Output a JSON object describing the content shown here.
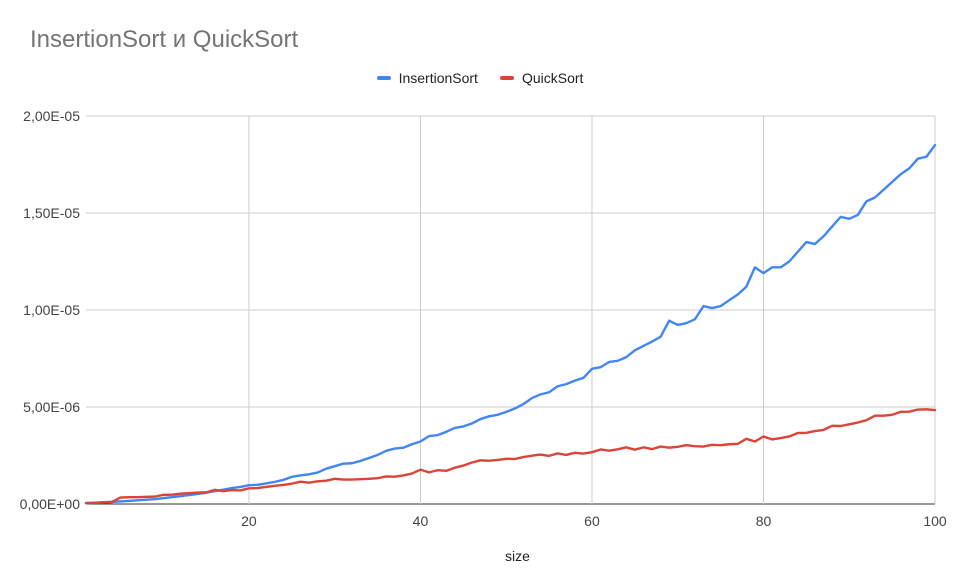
{
  "chart_data": {
    "type": "line",
    "title": "InsertionSort и QuickSort",
    "xlabel": "size",
    "ylabel": "",
    "xlim": [
      1,
      100
    ],
    "ylim": [
      0,
      2e-05
    ],
    "x_ticks": [
      20,
      40,
      60,
      80,
      100
    ],
    "x_tick_labels": [
      "20",
      "40",
      "60",
      "80",
      "100"
    ],
    "y_ticks": [
      0,
      5e-06,
      1e-05,
      1.5e-05,
      2e-05
    ],
    "y_tick_labels": [
      "0,00E+00",
      "5,00E-06",
      "1,00E-05",
      "1,50E-05",
      "2,00E-05"
    ],
    "grid": true,
    "legend_position": "top-center",
    "x": [
      1,
      2,
      3,
      4,
      5,
      6,
      7,
      8,
      9,
      10,
      11,
      12,
      13,
      14,
      15,
      16,
      17,
      18,
      19,
      20,
      21,
      22,
      23,
      24,
      25,
      26,
      27,
      28,
      29,
      30,
      31,
      32,
      33,
      34,
      35,
      36,
      37,
      38,
      39,
      40,
      41,
      42,
      43,
      44,
      45,
      46,
      47,
      48,
      49,
      50,
      51,
      52,
      53,
      54,
      55,
      56,
      57,
      58,
      59,
      60,
      61,
      62,
      63,
      64,
      65,
      66,
      67,
      68,
      69,
      70,
      71,
      72,
      73,
      74,
      75,
      76,
      77,
      78,
      79,
      80,
      81,
      82,
      83,
      84,
      85,
      86,
      87,
      88,
      89,
      90,
      91,
      92,
      93,
      94,
      95,
      96,
      97,
      98,
      99,
      100
    ],
    "series": [
      {
        "name": "InsertionSort",
        "color": "#4285f4",
        "values": [
          5e-08,
          7e-08,
          9e-08,
          1.1e-07,
          1.3e-07,
          1.6e-07,
          1.9e-07,
          2.2e-07,
          2.5e-07,
          3e-07,
          3.5e-07,
          4e-07,
          4.6e-07,
          5.2e-07,
          5.8e-07,
          6.6e-07,
          7.4e-07,
          8.2e-07,
          8.8e-07,
          9.7e-07,
          9.9e-07,
          1.06e-06,
          1.14e-06,
          1.24e-06,
          1.4e-06,
          1.47e-06,
          1.53e-06,
          1.62e-06,
          1.82e-06,
          1.95e-06,
          2.08e-06,
          2.1e-06,
          2.22e-06,
          2.37e-06,
          2.53e-06,
          2.74e-06,
          2.86e-06,
          2.9e-06,
          3.08e-06,
          3.22e-06,
          3.5e-06,
          3.55e-06,
          3.72e-06,
          3.92e-06,
          4e-06,
          4.15e-06,
          4.38e-06,
          4.52e-06,
          4.6e-06,
          4.75e-06,
          4.92e-06,
          5.15e-06,
          5.46e-06,
          5.65e-06,
          5.76e-06,
          6.07e-06,
          6.18e-06,
          6.36e-06,
          6.5e-06,
          6.97e-06,
          7.05e-06,
          7.32e-06,
          7.38e-06,
          7.57e-06,
          7.92e-06,
          8.15e-06,
          8.37e-06,
          8.62e-06,
          9.45e-06,
          9.23e-06,
          9.32e-06,
          9.52e-06,
          1.02e-05,
          1.01e-05,
          1.02e-05,
          1.05e-05,
          1.08e-05,
          1.12e-05,
          1.22e-05,
          1.19e-05,
          1.22e-05,
          1.22e-05,
          1.25e-05,
          1.3e-05,
          1.35e-05,
          1.34e-05,
          1.38e-05,
          1.43e-05,
          1.48e-05,
          1.47e-05,
          1.49e-05,
          1.56e-05,
          1.58e-05,
          1.62e-05,
          1.66e-05,
          1.7e-05,
          1.73e-05,
          1.78e-05,
          1.79e-05,
          1.85e-05
        ]
      },
      {
        "name": "QuickSort",
        "color": "#db4437",
        "values": [
          5e-08,
          6e-08,
          8e-08,
          1e-07,
          3.3e-07,
          3.5e-07,
          3.5e-07,
          3.7e-07,
          3.8e-07,
          4.7e-07,
          4.8e-07,
          5.3e-07,
          5.6e-07,
          5.9e-07,
          6e-07,
          7.3e-07,
          6.6e-07,
          7.2e-07,
          7e-07,
          8.1e-07,
          8.2e-07,
          8.8e-07,
          9.4e-07,
          9.8e-07,
          1.05e-06,
          1.15e-06,
          1.1e-06,
          1.17e-06,
          1.2e-06,
          1.3e-06,
          1.26e-06,
          1.26e-06,
          1.28e-06,
          1.3e-06,
          1.33e-06,
          1.42e-06,
          1.41e-06,
          1.47e-06,
          1.57e-06,
          1.77e-06,
          1.63e-06,
          1.74e-06,
          1.71e-06,
          1.87e-06,
          1.98e-06,
          2.14e-06,
          2.25e-06,
          2.23e-06,
          2.27e-06,
          2.33e-06,
          2.32e-06,
          2.42e-06,
          2.49e-06,
          2.55e-06,
          2.48e-06,
          2.61e-06,
          2.53e-06,
          2.64e-06,
          2.6e-06,
          2.67e-06,
          2.81e-06,
          2.75e-06,
          2.82e-06,
          2.92e-06,
          2.8e-06,
          2.92e-06,
          2.83e-06,
          2.96e-06,
          2.9e-06,
          2.95e-06,
          3.03e-06,
          2.98e-06,
          2.96e-06,
          3.05e-06,
          3.03e-06,
          3.08e-06,
          3.1e-06,
          3.36e-06,
          3.22e-06,
          3.48e-06,
          3.33e-06,
          3.4e-06,
          3.48e-06,
          3.66e-06,
          3.67e-06,
          3.76e-06,
          3.82e-06,
          4.03e-06,
          4.02e-06,
          4.11e-06,
          4.2e-06,
          4.32e-06,
          4.55e-06,
          4.55e-06,
          4.6e-06,
          4.75e-06,
          4.76e-06,
          4.87e-06,
          4.88e-06,
          4.84e-06
        ]
      }
    ]
  }
}
